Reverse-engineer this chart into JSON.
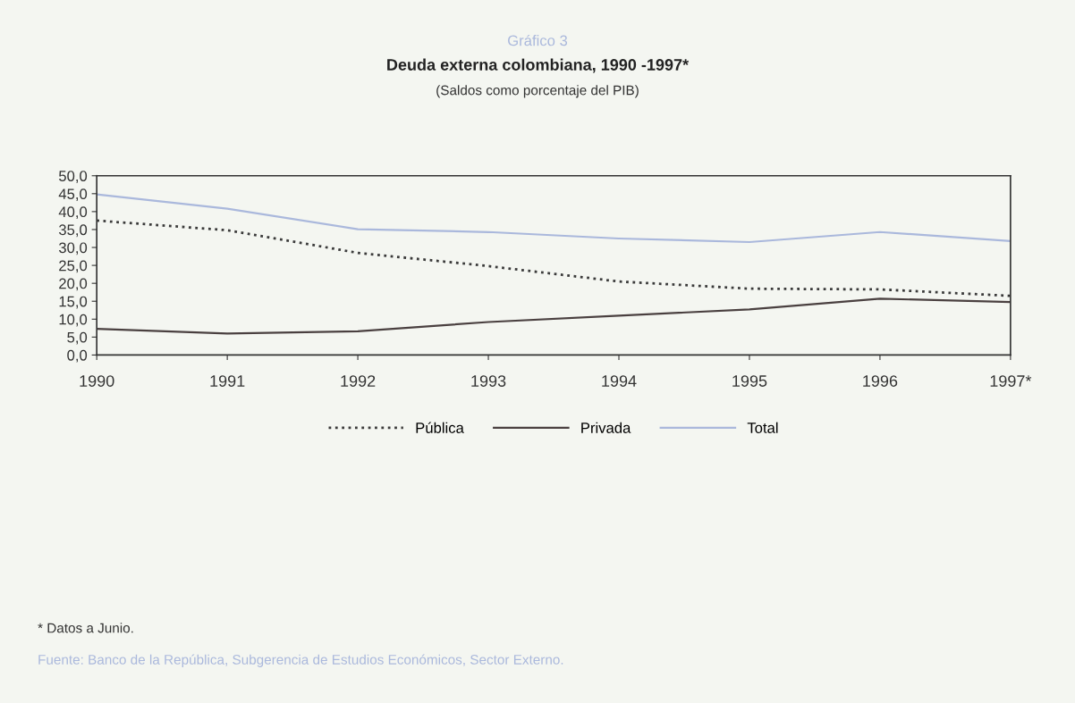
{
  "chart_data": {
    "type": "line",
    "title": "Deuda externa colombiana, 1990 -1997*",
    "subtitle": "(Saldos como porcentaje del PIB)",
    "annotations": [
      "Gráfico 3",
      "* Datos a Junio.",
      "Fuente: Banco de la República, Subgerencia de Estudios Económicos, Sector Externo."
    ],
    "categories": [
      "1990",
      "1991",
      "1992",
      "1993",
      "1994",
      "1995",
      "1996",
      "1997*"
    ],
    "series": [
      {
        "name": "Pública",
        "color": "#3a3a3a",
        "line_style": "dotted",
        "values": [
          37.5,
          34.8,
          28.5,
          24.8,
          20.5,
          18.5,
          18.3,
          16.5
        ]
      },
      {
        "name": "Privada",
        "color": "#4a4040",
        "line_style": "solid",
        "values": [
          7.3,
          6.0,
          6.6,
          9.2,
          11.0,
          12.7,
          15.7,
          14.8
        ]
      },
      {
        "name": "Total",
        "color": "#aab8dc",
        "line_style": "solid",
        "values": [
          44.8,
          40.8,
          35.1,
          34.3,
          32.5,
          31.5,
          34.3,
          31.8
        ]
      }
    ],
    "ylim": [
      0,
      50
    ],
    "yticks": [
      {
        "value": 0,
        "label": "0,0"
      },
      {
        "value": 5,
        "label": "5,0"
      },
      {
        "value": 10,
        "label": "10,0"
      },
      {
        "value": 15,
        "label": "15,0"
      },
      {
        "value": 20,
        "label": "20,0"
      },
      {
        "value": 25,
        "label": "25,0"
      },
      {
        "value": 30,
        "label": "30,0"
      },
      {
        "value": 35,
        "label": "35,0"
      },
      {
        "value": 40,
        "label": "40,0"
      },
      {
        "value": 45,
        "label": "45,0"
      },
      {
        "value": 50,
        "label": "50,0"
      }
    ],
    "grid": false,
    "legend": "bottom",
    "marker": "none"
  }
}
